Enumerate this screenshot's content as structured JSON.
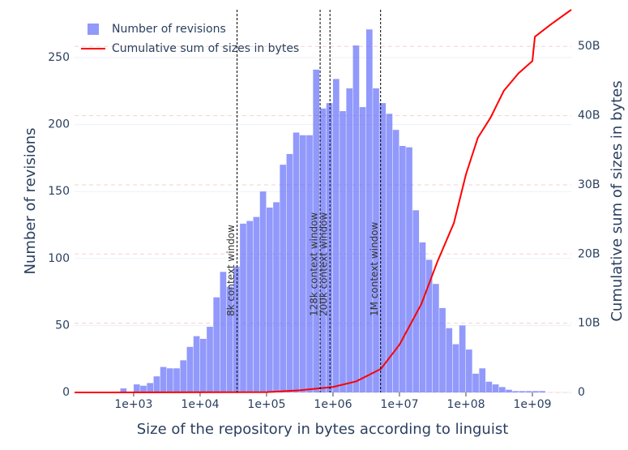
{
  "chart_data": {
    "type": "histogram",
    "xlabel": "Size of the repository in bytes according to linguist",
    "ylabel": "Number of revisions",
    "y2label": "Cumulative sum of sizes in bytes",
    "xscale": "log",
    "xlim": [
      129,
      3850000000.0
    ],
    "xticks": [
      {
        "value": 1000.0,
        "label": "1e+03"
      },
      {
        "value": 10000.0,
        "label": "1e+04"
      },
      {
        "value": 100000.0,
        "label": "1e+05"
      },
      {
        "value": 1000000.0,
        "label": "1e+06"
      },
      {
        "value": 10000000.0,
        "label": "1e+07"
      },
      {
        "value": 100000000.0,
        "label": "1e+08"
      },
      {
        "value": 1000000000.0,
        "label": "1e+09"
      }
    ],
    "ylim": [
      0,
      285.7
    ],
    "yticks": [
      0,
      50,
      100,
      150,
      200,
      250
    ],
    "y2lim": [
      0,
      55300000000.0
    ],
    "y2ticks": [
      0,
      {
        "value": 10000000000.0,
        "label": "10B"
      },
      {
        "value": 20000000000.0,
        "label": "20B"
      },
      {
        "value": 30000000000.0,
        "label": "30B"
      },
      {
        "value": 40000000000.0,
        "label": "40B"
      },
      {
        "value": 50000000000.0,
        "label": "50B"
      }
    ],
    "grid": true,
    "legend": "top-left",
    "series": [
      {
        "name": "Number of revisions",
        "type": "histogram",
        "color": "#636efa",
        "bins": [
          631,
          794,
          1000.0,
          1259.0,
          1585.0,
          1995.0,
          2512.0,
          3162.0,
          3981.0,
          5012.0,
          6310.0,
          7943.0,
          10000.0,
          12590.0,
          15850.0,
          19950.0,
          25120.0,
          31620.0,
          39810.0,
          50120.0,
          63100.0,
          79430.0,
          100000.0,
          125900.0,
          158500.0,
          199500.0,
          251200.0,
          316200.0,
          398100.0,
          501200.0,
          631000.0,
          794300.0,
          1000000.0,
          1259000.0,
          1585000.0,
          1995000.0,
          2512000.0,
          3162000.0,
          3981000.0,
          5012000.0,
          6310000.0,
          7943000.0,
          10000000.0,
          12590000.0,
          15850000.0,
          19950000.0,
          25120000.0,
          31620000.0,
          39810000.0,
          50120000.0,
          63100000.0,
          79430000.0,
          100000000.0,
          125900000.0,
          158500000.0,
          199500000.0,
          251200000.0,
          316200000.0,
          398100000.0,
          501200000.0,
          631000000.0,
          794300000.0,
          1000000000.0,
          1259000000.0,
          1585000000.0
        ],
        "values": [
          3,
          0,
          6,
          5,
          7,
          12,
          19,
          18,
          18,
          24,
          34,
          42,
          40,
          49,
          71,
          90,
          79,
          94,
          126,
          128,
          131,
          150,
          138,
          142,
          170,
          178,
          194,
          192,
          192,
          241,
          212,
          216,
          234,
          210,
          227,
          259,
          213,
          271,
          227,
          216,
          208,
          196,
          184,
          183,
          136,
          112,
          99,
          81,
          63,
          48,
          36,
          50,
          32,
          14,
          18,
          8,
          6,
          4,
          2,
          1,
          1,
          1,
          1,
          1
        ]
      },
      {
        "name": "Cumulative sum of sizes in bytes",
        "type": "line",
        "color": "#ff0000",
        "axis": "y2",
        "x": [
          129,
          100000.0,
          316000.0,
          1000000.0,
          2240000.0,
          5250000.0,
          10000000.0,
          21400000.0,
          37200000.0,
          66100000.0,
          100000000.0,
          151000000.0,
          234000000.0,
          372000000.0,
          617000000.0,
          1000000000.0,
          1090000000.0,
          1910000000.0,
          3850000000.0
        ],
        "values": [
          0,
          50000000.0,
          300000000.0,
          800000000.0,
          1600000000.0,
          3400000000.0,
          6900000000.0,
          12800000000.0,
          18900000000.0,
          24500000000.0,
          31500000000.0,
          36800000000.0,
          39700000000.0,
          43600000000.0,
          46100000000.0,
          47900000000.0,
          51400000000.0,
          53200000000.0,
          55300000000.0
        ]
      }
    ],
    "vlines": [
      {
        "x": 36000.0,
        "label": "8k context window"
      },
      {
        "x": 640000.0,
        "label": "128k context window"
      },
      {
        "x": 900000.0,
        "label": "200k context window"
      },
      {
        "x": 5200000.0,
        "label": "1M context window"
      }
    ]
  }
}
